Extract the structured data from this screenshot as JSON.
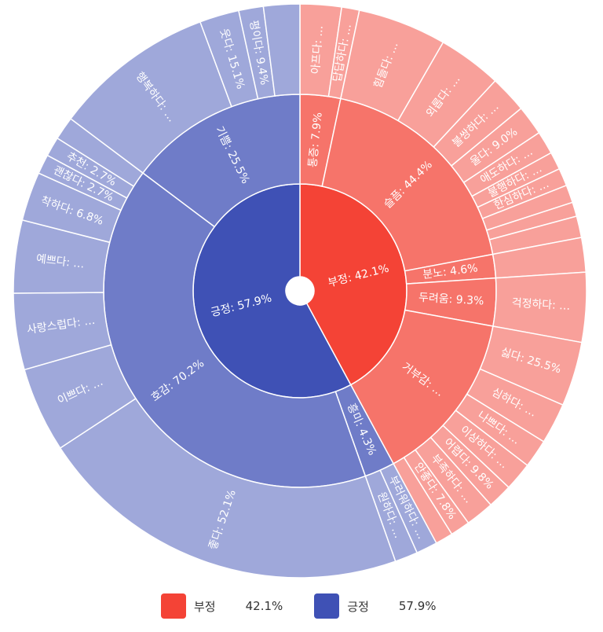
{
  "chart_data": {
    "type": "sunburst",
    "colors": {
      "부정": [
        "#f44336",
        "#f6746a",
        "#f8a09a"
      ],
      "긍정": [
        "#3f51b5",
        "#6f7cc8",
        "#9fa8da"
      ],
      "gap": "#ffffff"
    },
    "legend": [
      {
        "name": "부정",
        "value": "42.1%",
        "color": "#f44336"
      },
      {
        "name": "긍정",
        "value": "57.9%",
        "color": "#3f51b5"
      }
    ],
    "root": [
      {
        "name": "부정",
        "label": "부정: 42.1%",
        "value": 42.1,
        "children": [
          {
            "name": "통증",
            "label": "통증: 7.9%",
            "value": 3.33,
            "children": [
              {
                "name": "아프다",
                "label": "아프다: …",
                "value": 2.33
              },
              {
                "name": "답답하다",
                "label": "답답하다: …",
                "value": 1.0
              }
            ]
          },
          {
            "name": "슬픔",
            "label": "슬픔: 44.4%",
            "value": 18.69,
            "children": [
              {
                "name": "힘들다",
                "label": "힘들다: …",
                "value": 5.0
              },
              {
                "name": "외롭다",
                "label": "외롭다: …",
                "value": 3.6
              },
              {
                "name": "불쌍하다",
                "label": "불쌍하다: …",
                "value": 2.1
              },
              {
                "name": "울다",
                "label": "울다: 9.0%",
                "value": 1.68
              },
              {
                "name": "애도하다",
                "label": "애도하다: …",
                "value": 1.3
              },
              {
                "name": "불행하다",
                "label": "불행하다: …",
                "value": 1.0
              },
              {
                "name": "한심하다",
                "label": "한심하다: …",
                "value": 1.0
              },
              {
                "name": "",
                "label": "",
                "value": 1.0
              },
              {
                "name": "",
                "label": "",
                "value": 0.8
              },
              {
                "name": "",
                "label": "",
                "value": 1.21
              }
            ]
          },
          {
            "name": "분노",
            "label": "분노: 4.6%",
            "value": 1.94,
            "children": [
              {
                "name": "",
                "label": "",
                "value": 1.94
              }
            ]
          },
          {
            "name": "두려움",
            "label": "두려움: 9.3%",
            "value": 3.92,
            "children": [
              {
                "name": "걱정하다",
                "label": "걱정하다: …",
                "value": 3.92
              }
            ]
          },
          {
            "name": "거부감",
            "label": "거부감: …",
            "value": 14.22,
            "children": [
              {
                "name": "싫다",
                "label": "싫다: 25.5%",
                "value": 3.63
              },
              {
                "name": "심하다",
                "label": "심하다: …",
                "value": 2.3
              },
              {
                "name": "나쁘다",
                "label": "나쁘다: …",
                "value": 1.6
              },
              {
                "name": "이상하다",
                "label": "이상하다: …",
                "value": 1.6
              },
              {
                "name": "어렵다",
                "label": "어렵다: 9.8%",
                "value": 1.39
              },
              {
                "name": "부족하다",
                "label": "부족하다: …",
                "value": 1.6
              },
              {
                "name": "안좋다",
                "label": "안좋다: 7.8%",
                "value": 1.11
              },
              {
                "name": "",
                "label": "",
                "value": 0.99
              }
            ]
          }
        ]
      },
      {
        "name": "긍정",
        "label": "긍정: 57.9%",
        "value": 57.9,
        "children": [
          {
            "name": "흥미",
            "label": "흥미: 4.3%",
            "value": 2.49,
            "children": [
              {
                "name": "부러워하다",
                "label": "부러워하다: …",
                "value": 1.2
              },
              {
                "name": "원하다",
                "label": "원하다: …",
                "value": 1.29
              }
            ]
          },
          {
            "name": "호감",
            "label": "호감: 70.2%",
            "value": 40.65,
            "children": [
              {
                "name": "좋다",
                "label": "좋다: 52.1%",
                "value": 21.18
              },
              {
                "name": "이쁘다",
                "label": "이쁘다: …",
                "value": 4.8
              },
              {
                "name": "사랑스럽다",
                "label": "사랑스럽다: …",
                "value": 4.3
              },
              {
                "name": "예쁘다",
                "label": "예쁘다: …",
                "value": 4.1
              },
              {
                "name": "착하다",
                "label": "착하다: 6.8%",
                "value": 2.76
              },
              {
                "name": "괜찮다",
                "label": "괜찮다: 2.7%",
                "value": 1.1
              },
              {
                "name": "추천",
                "label": "추천: 2.7%",
                "value": 1.1
              },
              {
                "name": "",
                "label": "",
                "value": 1.31
              }
            ]
          },
          {
            "name": "기쁨",
            "label": "기쁨: 25.5%",
            "value": 14.76,
            "children": [
              {
                "name": "행복하다",
                "label": "행복하다: …",
                "value": 9.1
              },
              {
                "name": "웃다",
                "label": "웃다: 15.1%",
                "value": 2.23
              },
              {
                "name": "평이다",
                "label": "평이다: 9.4%",
                "value": 1.39
              },
              {
                "name": "",
                "label": "",
                "value": 2.04
              }
            ]
          }
        ]
      }
    ]
  }
}
